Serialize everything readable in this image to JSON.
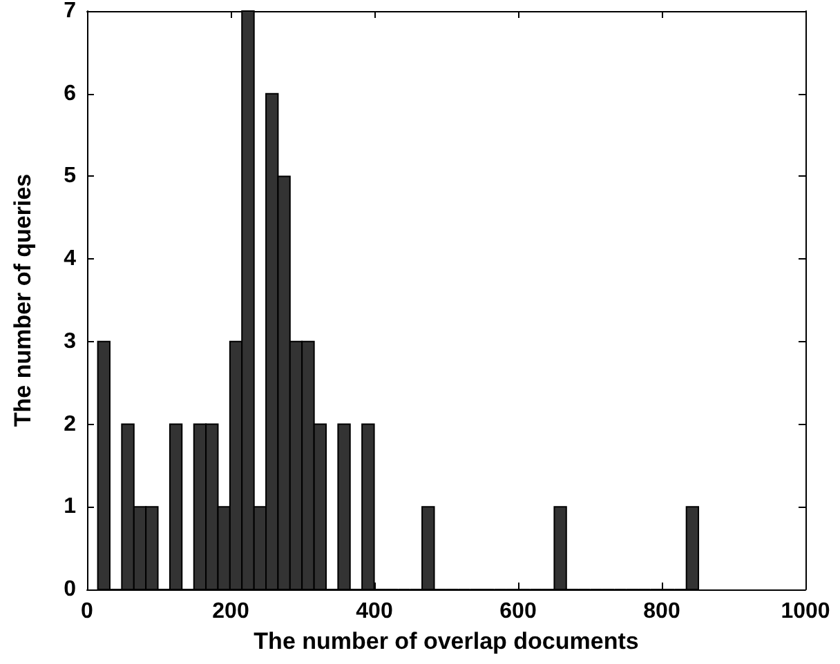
{
  "chart_data": {
    "type": "histogram",
    "xlabel": "The number of overlap documents",
    "ylabel": "The number of queries",
    "bins": [
      15,
      31.7,
      48.4,
      65.2,
      81.9,
      98.6,
      115.3,
      132,
      148.8,
      165.5,
      182.2,
      198.9,
      215.6,
      232.4,
      249.1,
      265.8,
      282.5,
      299.2,
      316,
      332.7,
      349.4,
      366.1,
      382.8,
      399.6,
      416.3,
      433,
      449.7,
      466.4,
      483.2,
      499.9,
      516.6,
      533.3,
      550,
      566.8,
      583.5,
      600.2,
      616.9,
      633.6,
      650.4,
      667.1,
      683.8,
      700.5,
      717.2,
      734,
      750.7,
      767.4,
      784.1,
      800.8,
      817.6,
      834.3,
      851
    ],
    "values": [
      3,
      0,
      2,
      1,
      1,
      0,
      2,
      0,
      2,
      2,
      1,
      3,
      7,
      1,
      6,
      5,
      3,
      3,
      2,
      0,
      2,
      0,
      2,
      0,
      0,
      0,
      0,
      1,
      0,
      0,
      0,
      0,
      0,
      0,
      0,
      0,
      0,
      0,
      1,
      0,
      0,
      0,
      0,
      0,
      0,
      0,
      0,
      0,
      0,
      1
    ],
    "color": "#333333",
    "xlim": [
      0,
      1000
    ],
    "xticks": [
      0,
      200,
      400,
      600,
      800,
      1000
    ],
    "ylim": [
      0,
      7
    ],
    "yticks": [
      0,
      1,
      2,
      3,
      4,
      5,
      6,
      7
    ],
    "grid": false
  }
}
